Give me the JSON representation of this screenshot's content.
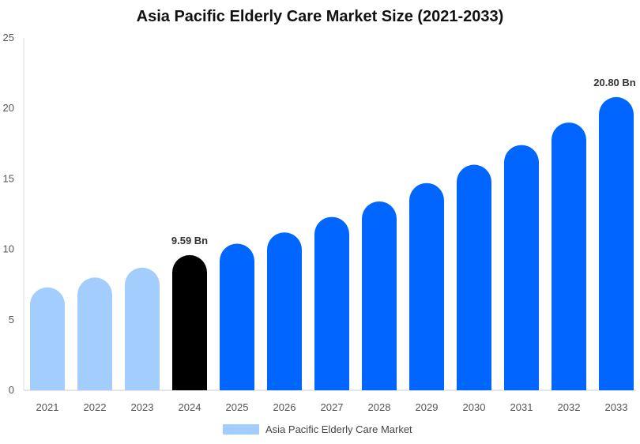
{
  "chart_data": {
    "type": "bar",
    "title": "Asia Pacific Elderly Care Market Size (2021-2033)",
    "categories": [
      "2021",
      "2022",
      "2023",
      "2024",
      "2025",
      "2026",
      "2027",
      "2028",
      "2029",
      "2030",
      "2031",
      "2032",
      "2033"
    ],
    "series": [
      {
        "name": "Asia Pacific Elderly Care Market",
        "values": [
          7.3,
          8.0,
          8.7,
          9.59,
          10.4,
          11.2,
          12.3,
          13.4,
          14.7,
          16.0,
          17.4,
          19.0,
          20.8
        ]
      }
    ],
    "data_labels": [
      {
        "category": "2024",
        "text": "9.59 Bn"
      },
      {
        "category": "2033",
        "text": "20.80 Bn"
      }
    ],
    "ylim": [
      0,
      25
    ],
    "yticks": [
      0,
      5,
      10,
      15,
      20,
      25
    ],
    "grid": false,
    "legend_position": "bottom",
    "colors": {
      "historic": "#a3cdfd",
      "base_year": "#000000",
      "forecast": "#0066ff",
      "legend_swatch": "#a3cdfd"
    },
    "bar_color_groups": [
      "historic",
      "historic",
      "historic",
      "base_year",
      "forecast",
      "forecast",
      "forecast",
      "forecast",
      "forecast",
      "forecast",
      "forecast",
      "forecast",
      "forecast"
    ]
  }
}
